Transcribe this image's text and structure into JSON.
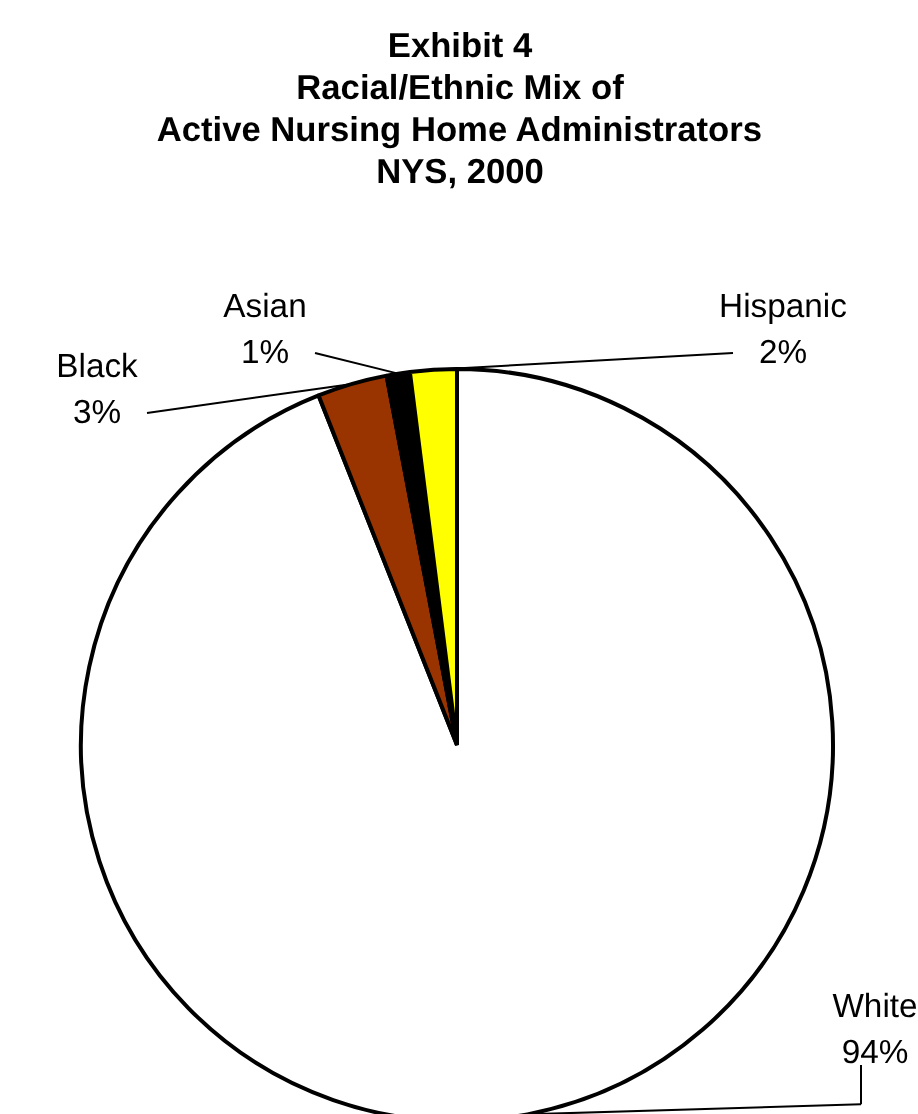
{
  "chart_data": {
    "type": "pie",
    "title": "Exhibit 4\nRacial/Ethnic Mix of\nActive Nursing Home Administrators\nNYS, 2000",
    "categories": [
      "White",
      "Black",
      "Asian",
      "Hispanic"
    ],
    "values": [
      94,
      3,
      1,
      2
    ],
    "value_labels": [
      "94%",
      "3%",
      "1%",
      "2%"
    ],
    "colors": [
      "#ffffff",
      "#993300",
      "#000000",
      "#ffff00"
    ],
    "legend": false
  }
}
